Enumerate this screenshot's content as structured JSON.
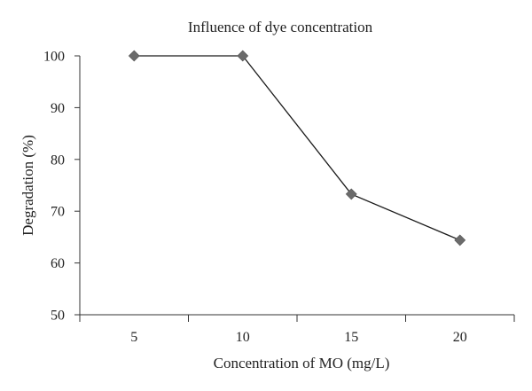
{
  "chart_data": {
    "type": "line",
    "title": "Influence of dye concentration",
    "xlabel": "Concentration of MO (mg/L)",
    "ylabel": "Degradation (%)",
    "categories": [
      "5",
      "10",
      "15",
      "20"
    ],
    "series": [
      {
        "values": [
          100,
          100,
          73.3,
          64.4
        ]
      }
    ],
    "ylim": [
      50,
      100
    ],
    "yticks": [
      "50",
      "60",
      "70",
      "80",
      "90",
      "100"
    ],
    "grid": false,
    "legend": "none",
    "marker": "diamond",
    "colors": {
      "line": "#1a1a1a",
      "marker": "#6b6b6b",
      "axis": "#333333"
    }
  }
}
